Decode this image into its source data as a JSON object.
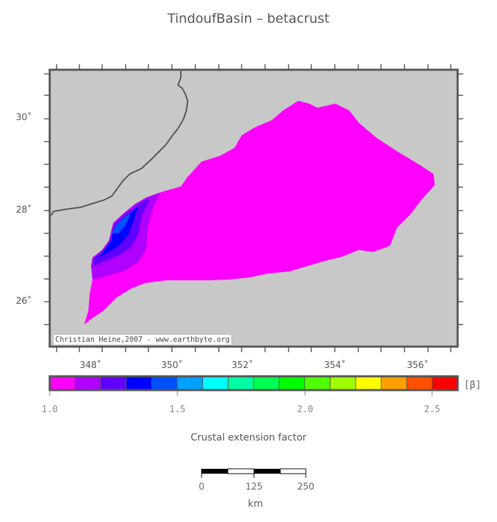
{
  "title": "TindoufBasin – betacrust",
  "map": {
    "lon_ticks": [
      "348˚",
      "350˚",
      "352˚",
      "354˚",
      "356˚"
    ],
    "lat_ticks": [
      "30˚",
      "28˚",
      "26˚"
    ],
    "credit": "Christian Heine,2007 - www.earthbyte.org",
    "background_color": "#c8c8c8",
    "basin_color": "#ff00ff"
  },
  "colorbar": {
    "colors": [
      "#ff00ff",
      "#b000ff",
      "#6000ff",
      "#0000ff",
      "#0050ff",
      "#00a0ff",
      "#00ffff",
      "#00ffa0",
      "#00ff50",
      "#00ff00",
      "#50ff00",
      "#a0ff00",
      "#ffff00",
      "#ffa000",
      "#ff5000",
      "#ff0000"
    ],
    "tick_labels": [
      "1.0",
      "1.5",
      "2.0",
      "2.5"
    ],
    "unit": "[β]",
    "title": "Crustal extension factor"
  },
  "scalebar": {
    "labels": [
      "0",
      "125",
      "250"
    ],
    "unit": "km"
  }
}
